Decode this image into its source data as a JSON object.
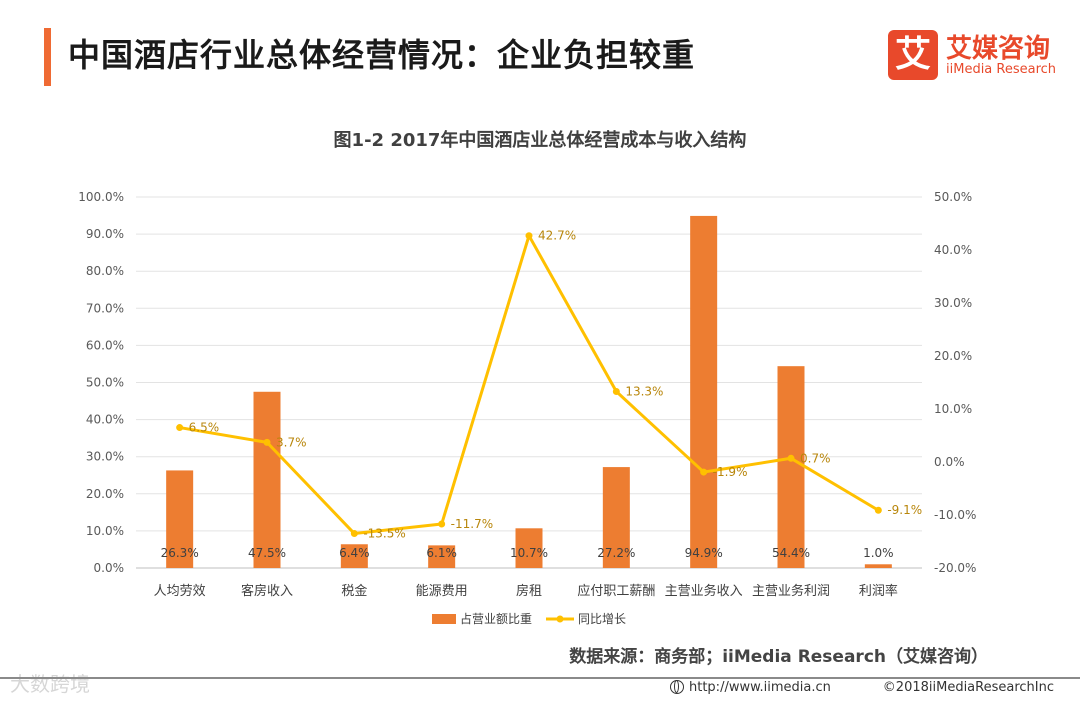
{
  "header": {
    "title": "中国酒店行业总体经营情况：企业负担较重",
    "brand_mark": "艾",
    "brand_name": "艾媒咨询",
    "brand_en": "iiMedia Research"
  },
  "colors": {
    "accent": "#ef6a33",
    "bar": "#ed7d31",
    "line": "#ffc000",
    "brand": "#e8492b"
  },
  "chart_data": {
    "type": "bar+line",
    "title": "图1-2 2017年中国酒店业总体经营成本与收入结构",
    "categories": [
      "人均劳效",
      "客房收入",
      "税金",
      "能源费用",
      "房租",
      "应付职工薪酬",
      "主营业务收入",
      "主营业务利润",
      "利润率"
    ],
    "series": [
      {
        "name": "占营业额比重",
        "type": "bar",
        "axis": "left",
        "values": [
          26.3,
          47.5,
          6.4,
          6.1,
          10.7,
          27.2,
          94.9,
          54.4,
          1.0
        ],
        "labels": [
          "26.3%",
          "47.5%",
          "6.4%",
          "6.1%",
          "10.7%",
          "27.2%",
          "94.9%",
          "54.4%",
          "1.0%"
        ]
      },
      {
        "name": "同比增长",
        "type": "line",
        "axis": "right",
        "values": [
          6.5,
          3.7,
          -13.5,
          -11.7,
          42.7,
          13.3,
          -1.9,
          0.7,
          -9.1
        ],
        "labels": [
          "6.5%",
          "3.7%",
          "-13.5%",
          "-11.7%",
          "42.7%",
          "13.3%",
          "-1.9%",
          "0.7%",
          "-9.1%"
        ]
      }
    ],
    "y_left": {
      "range": [
        0,
        100
      ],
      "ticks": [
        "0.0%",
        "10.0%",
        "20.0%",
        "30.0%",
        "40.0%",
        "50.0%",
        "60.0%",
        "70.0%",
        "80.0%",
        "90.0%",
        "100.0%"
      ]
    },
    "y_right": {
      "range": [
        -20,
        50
      ],
      "ticks": [
        "-20.0%",
        "-10.0%",
        "0.0%",
        "10.0%",
        "20.0%",
        "30.0%",
        "40.0%",
        "50.0%"
      ]
    },
    "grid": true,
    "legend": "bottom-center"
  },
  "footer": {
    "source": "数据来源：商务部；iiMedia Research（艾媒咨询）",
    "watermark": "大数跨境",
    "url": "http://www.iimedia.cn",
    "copyright": "©2018iiMediaResearchInc"
  }
}
